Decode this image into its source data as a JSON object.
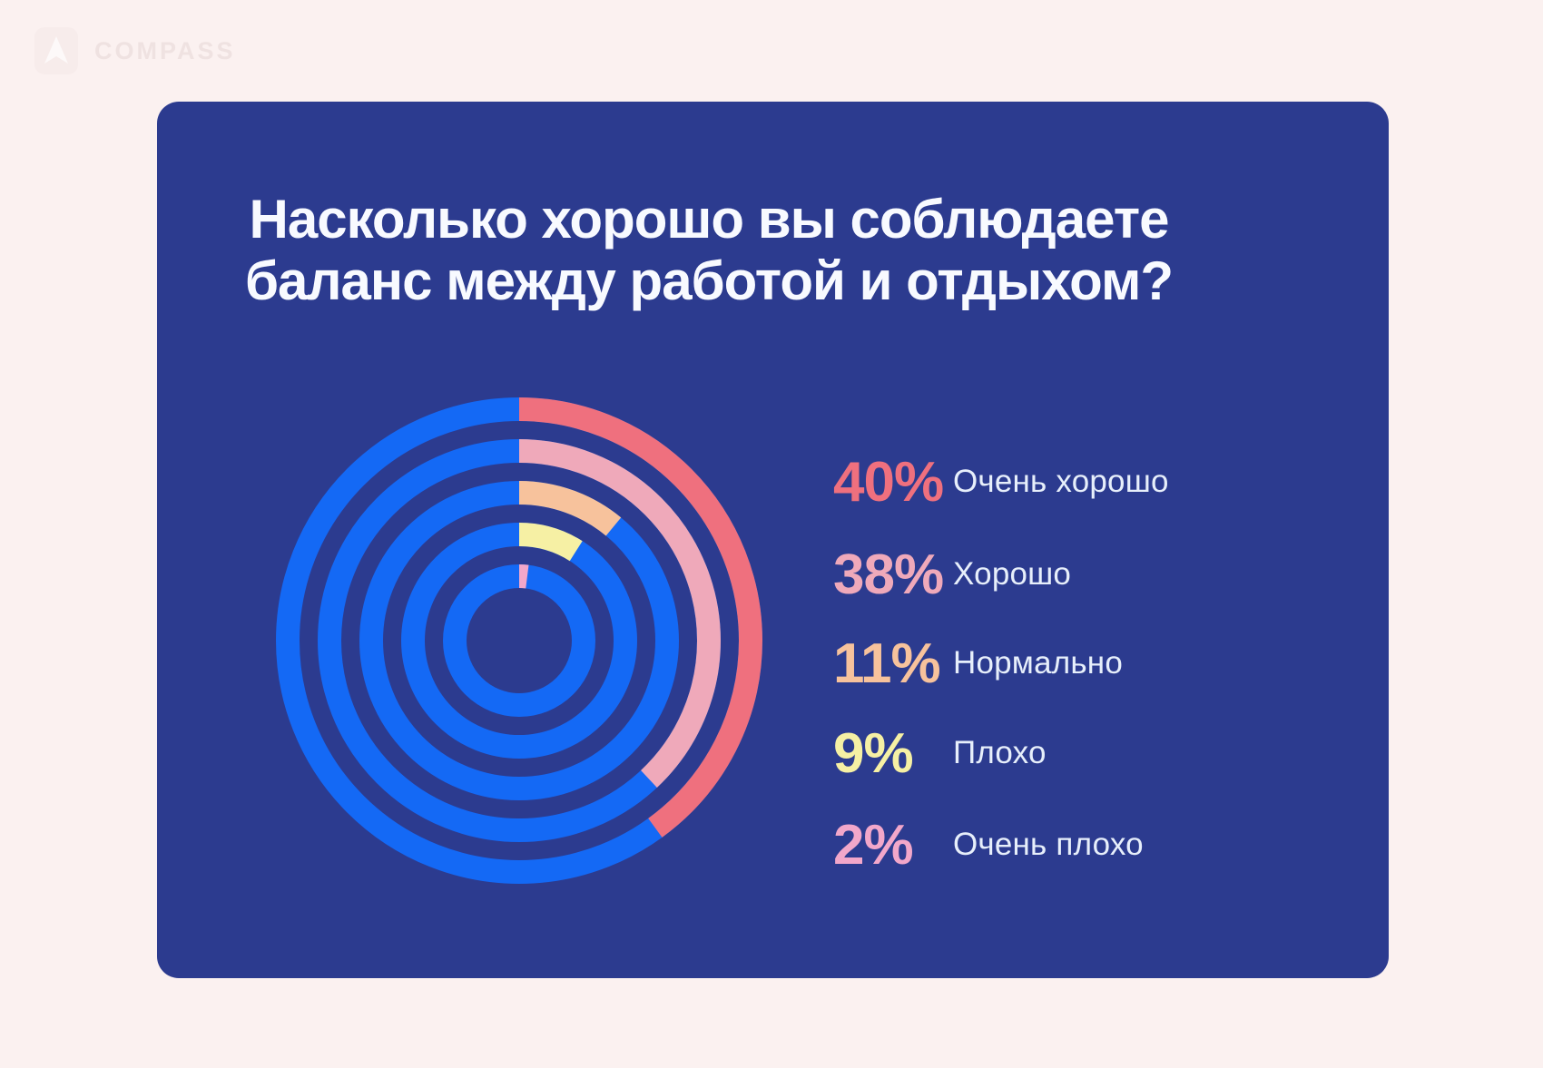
{
  "page": {
    "background_color": "#FBF1F0"
  },
  "logo": {
    "text": "COMPASS",
    "icon": "compass-arrow-icon"
  },
  "card": {
    "background_color": "#2C3B8F",
    "title_line1": "Насколько хорошо вы соблюдаете",
    "title_line2": "баланс между работой и отдыхом?"
  },
  "chart_data": {
    "type": "pie",
    "variant": "concentric-progress-rings",
    "title": "Насколько хорошо вы соблюдаете баланс между работой и отдыхом?",
    "categories": [
      "Очень хорошо",
      "Хорошо",
      "Нормально",
      "Плохо",
      "Очень плохо"
    ],
    "values": [
      40,
      38,
      11,
      9,
      2
    ],
    "unit": "%",
    "colors": [
      "#EF707E",
      "#EFA9BA",
      "#F7C29C",
      "#F6F0A4",
      "#F2A7CA"
    ],
    "track_color": "#1469F5",
    "ring_radii": [
      255,
      209,
      163,
      117,
      71
    ],
    "ring_thickness": 26,
    "start_angle": "12-oclock",
    "direction": "clockwise",
    "legend_position": "right",
    "grid": false
  },
  "legend": {
    "items": [
      {
        "value": "40%",
        "label": "Очень хорошо",
        "color": "#EF707E"
      },
      {
        "value": "38%",
        "label": "Хорошо",
        "color": "#EFA9BA"
      },
      {
        "value": "11%",
        "label": "Нормально",
        "color": "#F7C29C"
      },
      {
        "value": "9%",
        "label": "Плохо",
        "color": "#F6F0A4"
      },
      {
        "value": "2%",
        "label": "Очень плохо",
        "color": "#F2A7CA"
      }
    ]
  }
}
